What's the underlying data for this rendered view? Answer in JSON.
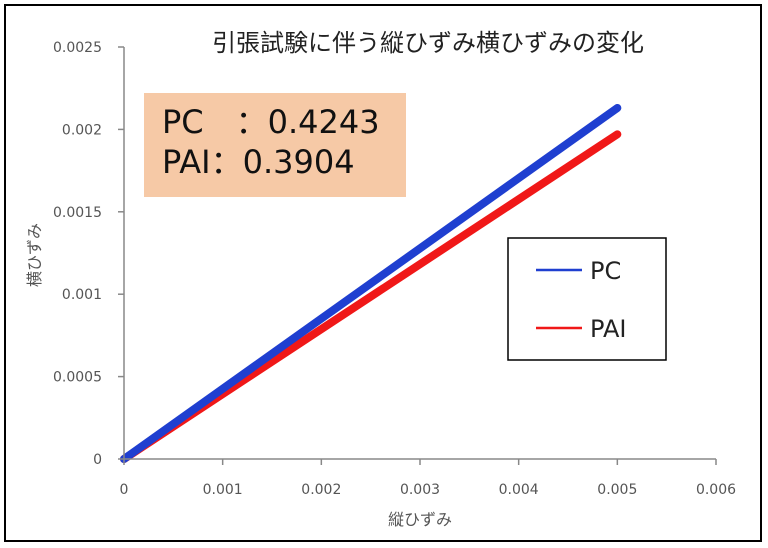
{
  "chart_data": {
    "type": "line",
    "title": "引張試験に伴う縦ひずみ横ひずみの変化",
    "xlabel": "縦ひずみ",
    "ylabel": "横ひずみ",
    "xlim": [
      0,
      0.006
    ],
    "ylim": [
      0,
      0.0025
    ],
    "xticks": [
      "0",
      "0.001",
      "0.002",
      "0.003",
      "0.004",
      "0.005",
      "0.006"
    ],
    "yticks": [
      "0",
      "0.0005",
      "0.001",
      "0.0015",
      "0.002",
      "0.0025"
    ],
    "grid": false,
    "legend_position": "right",
    "series": [
      {
        "name": "PC",
        "color": "#1f3fd0",
        "x": [
          0,
          0.005
        ],
        "y": [
          0,
          0.00213
        ]
      },
      {
        "name": "PAI",
        "color": "#f01818",
        "x": [
          0,
          0.005
        ],
        "y": [
          0,
          0.00197
        ]
      }
    ],
    "annotation": {
      "lines": [
        "PC　：0.4243",
        "PAI：0.3904"
      ],
      "background": "#f6c9a6"
    }
  }
}
